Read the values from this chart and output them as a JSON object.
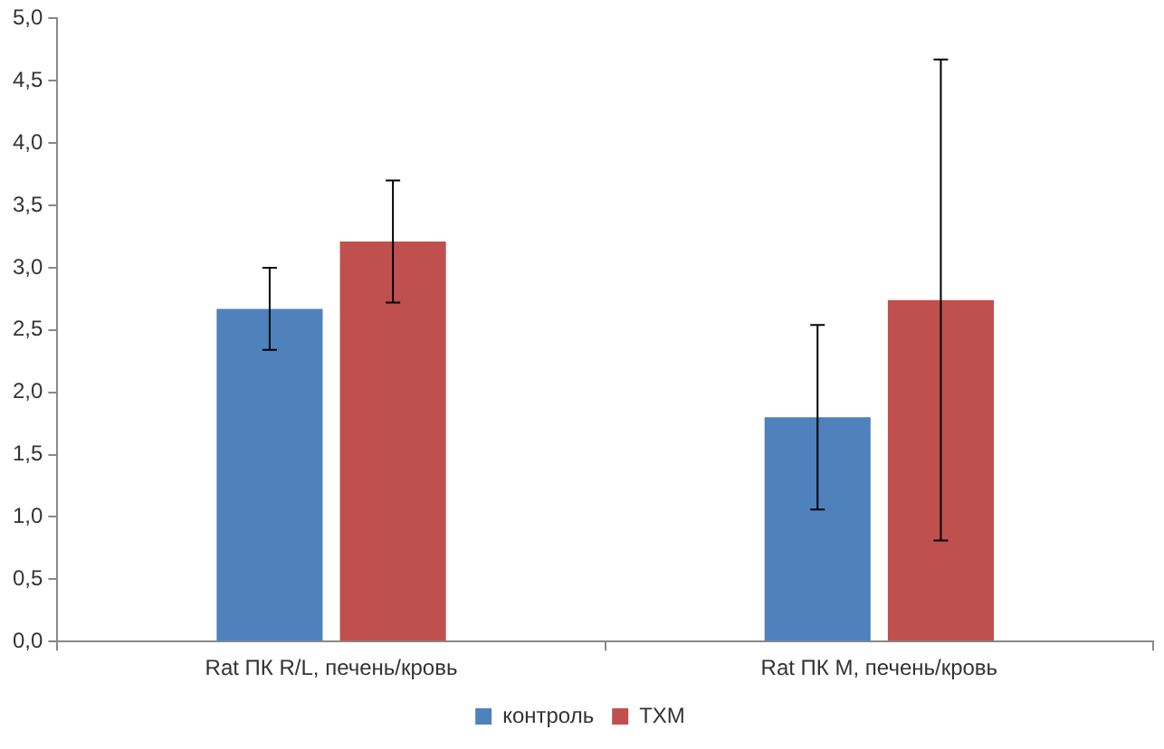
{
  "chart_data": {
    "type": "bar",
    "categories": [
      "Rat ПК R/L, печень/кровь",
      "Rat ПК M, печень/кровь"
    ],
    "series": [
      {
        "name": "контроль",
        "color": "#4f81bd",
        "values": [
          2.67,
          1.8
        ],
        "errors": [
          0.33,
          0.74
        ]
      },
      {
        "name": "ТХМ",
        "color": "#c0504d",
        "values": [
          3.21,
          2.74
        ],
        "errors": [
          0.49,
          1.93
        ]
      }
    ],
    "ylim": [
      0,
      5
    ],
    "yticks": [
      {
        "value": 0,
        "label": "0,0"
      },
      {
        "value": 0.5,
        "label": "0,5"
      },
      {
        "value": 1,
        "label": "1,0"
      },
      {
        "value": 1.5,
        "label": "1,5"
      },
      {
        "value": 2,
        "label": "2,0"
      },
      {
        "value": 2.5,
        "label": "2,5"
      },
      {
        "value": 3,
        "label": "3,0"
      },
      {
        "value": 3.5,
        "label": "3,5"
      },
      {
        "value": 4,
        "label": "4,0"
      },
      {
        "value": 4.5,
        "label": "4,5"
      },
      {
        "value": 5,
        "label": "5,0"
      }
    ],
    "grid": false,
    "legend": "bottom"
  }
}
